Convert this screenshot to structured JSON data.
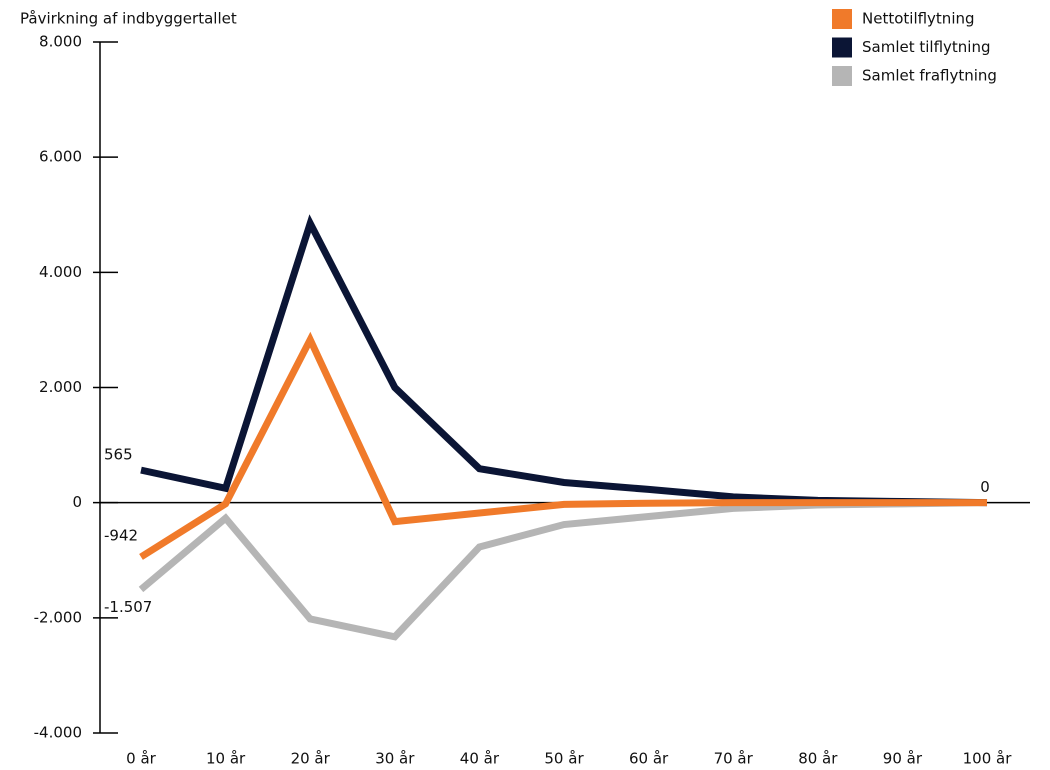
{
  "chart_data": {
    "type": "line",
    "y_axis_label": "Påvirkning af indbyggertallet",
    "categories": [
      "0 år",
      "10 år",
      "20 år",
      "30 år",
      "40 år",
      "50 år",
      "60 år",
      "70 år",
      "80 år",
      "90 år",
      "100 år"
    ],
    "series": [
      {
        "name": "Nettotilflytning",
        "color": "#f07a2a",
        "values": [
          -942,
          -20,
          2830,
          -330,
          -180,
          -30,
          -10,
          0,
          0,
          0,
          0
        ],
        "value_labels": [
          "-942",
          null,
          null,
          null,
          null,
          null,
          null,
          null,
          null,
          null,
          null
        ]
      },
      {
        "name": "Samlet tilflytning",
        "color": "#0b1535",
        "values": [
          565,
          250,
          4850,
          2000,
          590,
          350,
          230,
          100,
          40,
          20,
          0
        ],
        "value_labels": [
          "565",
          null,
          null,
          null,
          null,
          null,
          null,
          null,
          null,
          null,
          "0"
        ]
      },
      {
        "name": "Samlet fraflytning",
        "color": "#b5b5b5",
        "values": [
          -1507,
          -270,
          -2020,
          -2330,
          -770,
          -380,
          -240,
          -100,
          -40,
          -20,
          0
        ],
        "value_labels": [
          "-1.507",
          null,
          null,
          null,
          null,
          null,
          null,
          null,
          null,
          null,
          null
        ]
      }
    ],
    "ylim": [
      -4000,
      8000
    ],
    "yticks": [
      {
        "value": -4000,
        "label": "-4.000"
      },
      {
        "value": -2000,
        "label": "-2.000"
      },
      0,
      {
        "value": 2000,
        "label": "2.000"
      },
      {
        "value": 4000,
        "label": "4.000"
      },
      {
        "value": 6000,
        "label": "6.000"
      },
      {
        "value": 8000,
        "label": "8.000"
      }
    ],
    "legend": "top-right"
  }
}
